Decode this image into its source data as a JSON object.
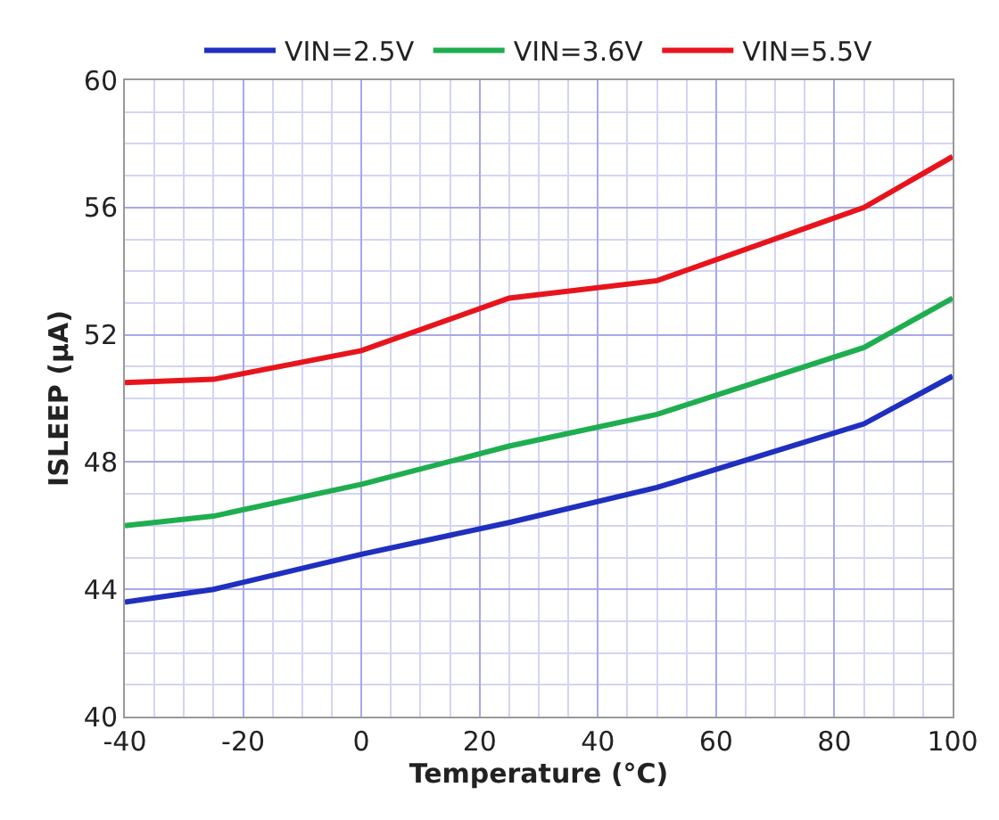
{
  "chart_data": {
    "type": "line",
    "xlabel": "Temperature (°C)",
    "ylabel": "ISLEEP (µA)",
    "x": [
      -40,
      -25,
      0,
      25,
      50,
      85,
      100
    ],
    "series": [
      {
        "name": "VIN=2.5V",
        "color": "#1f2fbf",
        "values": [
          43.6,
          44.0,
          45.1,
          46.1,
          47.2,
          49.2,
          50.7
        ]
      },
      {
        "name": "VIN=3.6V",
        "color": "#1fae4f",
        "values": [
          46.0,
          46.3,
          47.3,
          48.5,
          49.5,
          51.6,
          53.15
        ]
      },
      {
        "name": "VIN=5.5V",
        "color": "#e8141c",
        "values": [
          50.5,
          50.6,
          51.5,
          53.15,
          53.7,
          56.0,
          57.6
        ]
      }
    ],
    "xlim": [
      -40,
      100
    ],
    "xticks": [
      -40,
      -20,
      0,
      20,
      40,
      60,
      80,
      100
    ],
    "ylim": [
      40,
      60
    ],
    "yticks": [
      40,
      44,
      48,
      52,
      56,
      60
    ],
    "grid": true,
    "legend": "top",
    "marker": "none",
    "line_style": "solid"
  }
}
